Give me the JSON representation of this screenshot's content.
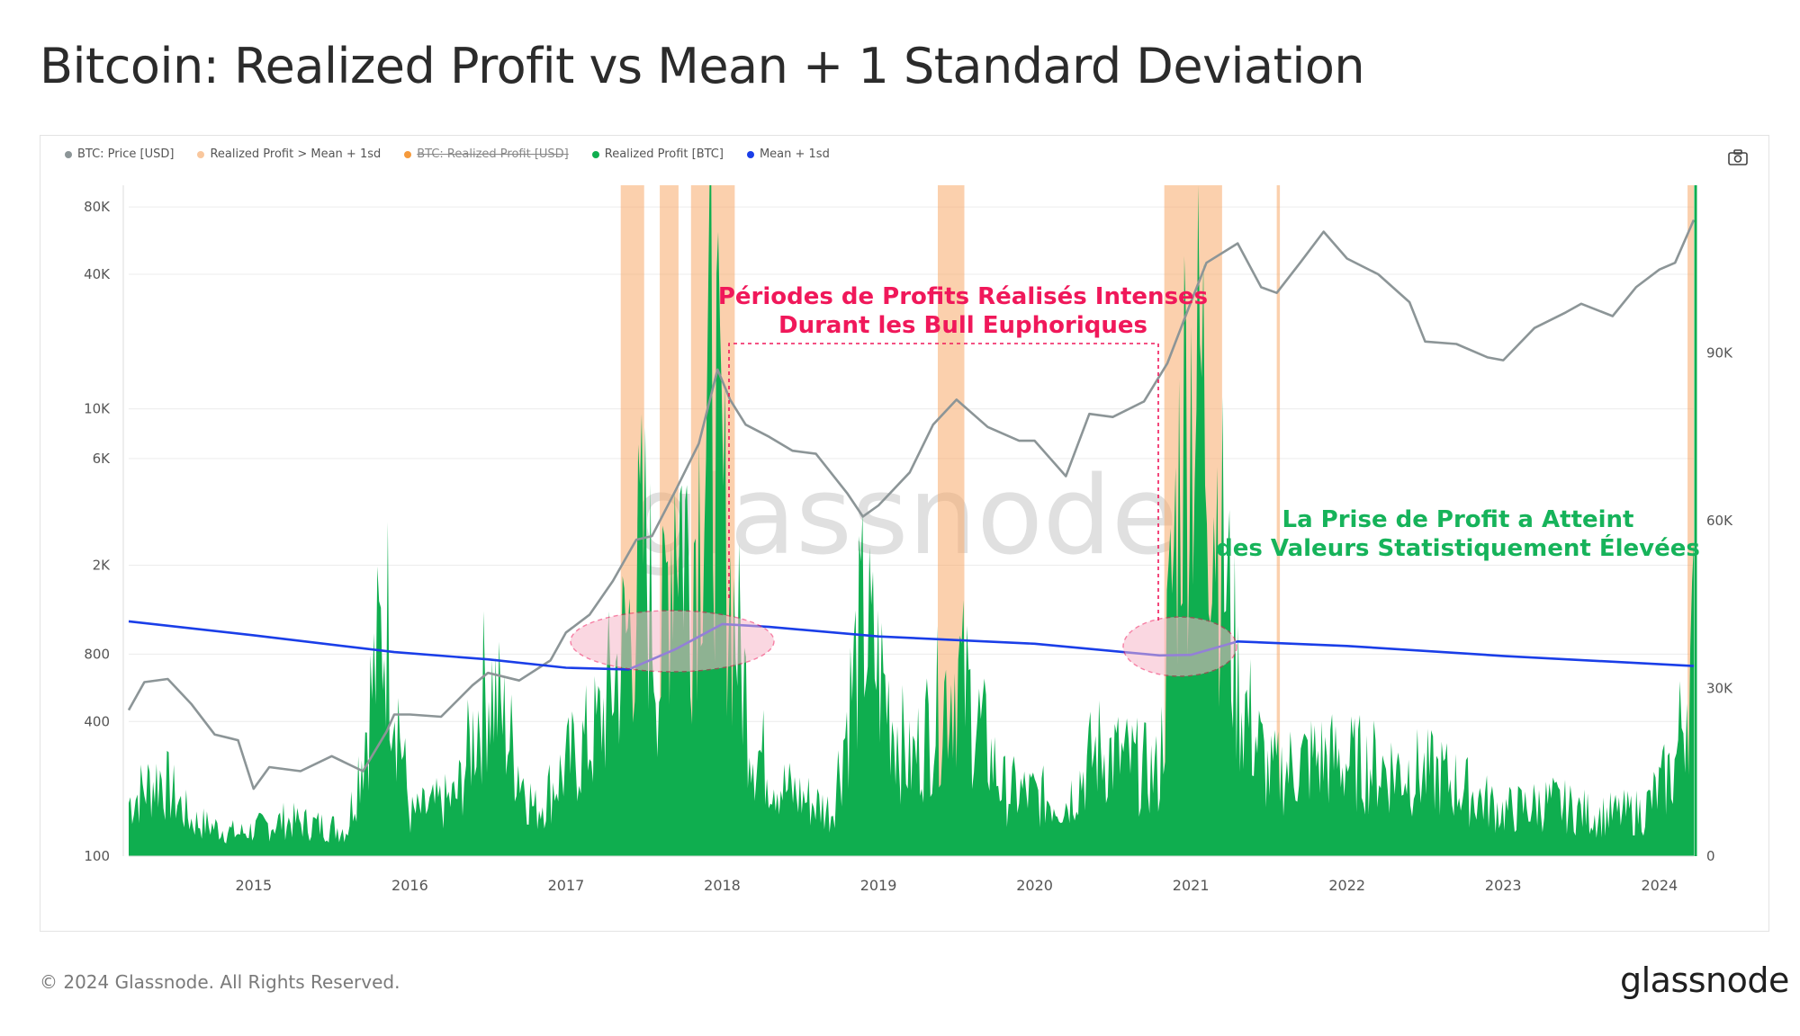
{
  "page": {
    "title": "Bitcoin: Realized Profit vs Mean + 1 Standard Deviation",
    "copyright": "© 2024 Glassnode. All Rights Reserved.",
    "logo_text": "glassnode",
    "watermark": "glassnode"
  },
  "annotations": {
    "red_line1": "Périodes de Profits Réalisés Intenses",
    "red_line2": "Durant les Bull Euphoriques",
    "green_line1": "La Prise de Profit a Atteint",
    "green_line2": "des Valeurs Statistiquement Élevées"
  },
  "legend": [
    {
      "label": "BTC: Price [USD]",
      "color": "#8c9597",
      "hidden": false
    },
    {
      "label": "Realized Profit > Mean + 1sd",
      "color": "#f9c79d",
      "hidden": false
    },
    {
      "label": "BTC: Realized Profit [USD]",
      "color": "#f59a3c",
      "hidden": true
    },
    {
      "label": "Realized Profit [BTC]",
      "color": "#0fae4f",
      "hidden": false
    },
    {
      "label": "Mean + 1sd",
      "color": "#1a3ee8",
      "hidden": false
    }
  ],
  "colors": {
    "price": "#8c9597",
    "profit": "#0fae4f",
    "highlight": "#f7a96a",
    "mean": "#1a3ee8",
    "red_annotation": "#f0185a",
    "green_annotation": "#16b35a",
    "ellipse_fill": "#f7b7c9"
  },
  "chart_data": {
    "type": "line",
    "x_ticks": [
      "2015",
      "2016",
      "2017",
      "2018",
      "2019",
      "2020",
      "2021",
      "2022",
      "2023",
      "2024"
    ],
    "xlim": [
      2014.2,
      2024.22
    ],
    "left_axis": {
      "scale": "log",
      "ylim": [
        100,
        100000
      ],
      "tick_values": [
        100,
        400,
        800,
        2000,
        6000,
        10000,
        40000,
        80000
      ],
      "tick_labels": [
        "100",
        "400",
        "800",
        "2K",
        "6K",
        "10K",
        "40K",
        "80K"
      ]
    },
    "right_axis": {
      "scale": "linear",
      "ylim": [
        0,
        120000
      ],
      "tick_values": [
        0,
        30000,
        60000,
        90000
      ],
      "tick_labels": [
        "0",
        "30K",
        "60K",
        "90K"
      ]
    },
    "series": [
      {
        "name": "BTC: Price [USD]",
        "axis": "left",
        "x": [
          2014.2,
          2014.3,
          2014.45,
          2014.6,
          2014.75,
          2014.9,
          2015.0,
          2015.1,
          2015.3,
          2015.5,
          2015.7,
          2015.85,
          2015.9,
          2016.0,
          2016.2,
          2016.4,
          2016.5,
          2016.7,
          2016.9,
          2017.0,
          2017.15,
          2017.3,
          2017.45,
          2017.55,
          2017.7,
          2017.85,
          2017.97,
          2018.05,
          2018.15,
          2018.3,
          2018.45,
          2018.6,
          2018.8,
          2018.9,
          2019.0,
          2019.2,
          2019.35,
          2019.5,
          2019.7,
          2019.9,
          2020.0,
          2020.2,
          2020.35,
          2020.5,
          2020.7,
          2020.85,
          2021.0,
          2021.1,
          2021.3,
          2021.45,
          2021.55,
          2021.7,
          2021.85,
          2022.0,
          2022.2,
          2022.4,
          2022.5,
          2022.7,
          2022.9,
          2023.0,
          2023.2,
          2023.4,
          2023.5,
          2023.7,
          2023.85,
          2024.0,
          2024.1,
          2024.22
        ],
        "y": [
          450,
          600,
          620,
          480,
          350,
          330,
          200,
          250,
          240,
          280,
          240,
          360,
          430,
          430,
          420,
          580,
          660,
          610,
          750,
          1000,
          1200,
          1700,
          2600,
          2700,
          4300,
          7000,
          15000,
          11000,
          8500,
          7500,
          6500,
          6300,
          4200,
          3300,
          3700,
          5200,
          8500,
          11000,
          8300,
          7200,
          7200,
          5000,
          9500,
          9200,
          10800,
          16000,
          30000,
          45000,
          55000,
          35000,
          33000,
          45000,
          62000,
          47000,
          40000,
          30000,
          20000,
          19500,
          17000,
          16500,
          23000,
          27000,
          29500,
          26000,
          35000,
          42000,
          45000,
          70000
        ]
      },
      {
        "name": "Mean + 1sd",
        "axis": "right",
        "x": [
          2014.2,
          2015.0,
          2015.9,
          2016.5,
          2017.0,
          2017.4,
          2017.7,
          2017.9,
          2018.0,
          2018.3,
          2019.0,
          2020.0,
          2020.8,
          2021.0,
          2021.3,
          2022.0,
          2023.0,
          2024.22
        ],
        "y": [
          42000,
          39500,
          36500,
          35200,
          33700,
          33400,
          37000,
          40000,
          41500,
          41000,
          39300,
          38000,
          35900,
          36000,
          38400,
          37600,
          35800,
          34000
        ]
      },
      {
        "name": "Realized Profit [BTC]",
        "axis": "right",
        "x": [
          2014.2,
          2014.4,
          2014.6,
          2014.9,
          2015.2,
          2015.6,
          2015.85,
          2016.0,
          2016.3,
          2016.5,
          2016.8,
          2017.0,
          2017.2,
          2017.4,
          2017.5,
          2017.6,
          2017.7,
          2017.8,
          2017.93,
          2018.05,
          2018.2,
          2018.4,
          2018.7,
          2018.9,
          2019.2,
          2019.5,
          2019.8,
          2020.2,
          2020.4,
          2020.8,
          2020.95,
          2021.05,
          2021.15,
          2021.3,
          2021.5,
          2021.8,
          2022.2,
          2022.6,
          2023.0,
          2023.3,
          2023.6,
          2023.9,
          2024.1,
          2024.22
        ],
        "y": [
          12000,
          18000,
          8000,
          5000,
          8000,
          6000,
          55000,
          9000,
          13000,
          40000,
          10000,
          20000,
          28000,
          50000,
          70000,
          40000,
          85000,
          65000,
          107000,
          60000,
          25000,
          15000,
          10000,
          52000,
          20000,
          42000,
          15000,
          12000,
          24000,
          18000,
          98000,
          110000,
          85000,
          38000,
          18000,
          22000,
          20000,
          18000,
          10000,
          12000,
          9000,
          10000,
          20000,
          48000
        ]
      }
    ],
    "highlight_periods": [
      [
        2017.35,
        2017.5
      ],
      [
        2017.6,
        2017.72
      ],
      [
        2017.8,
        2018.08
      ],
      [
        2019.38,
        2019.55
      ],
      [
        2020.83,
        2021.2
      ],
      [
        2021.55,
        2021.57
      ],
      [
        2024.18,
        2024.22
      ]
    ]
  }
}
